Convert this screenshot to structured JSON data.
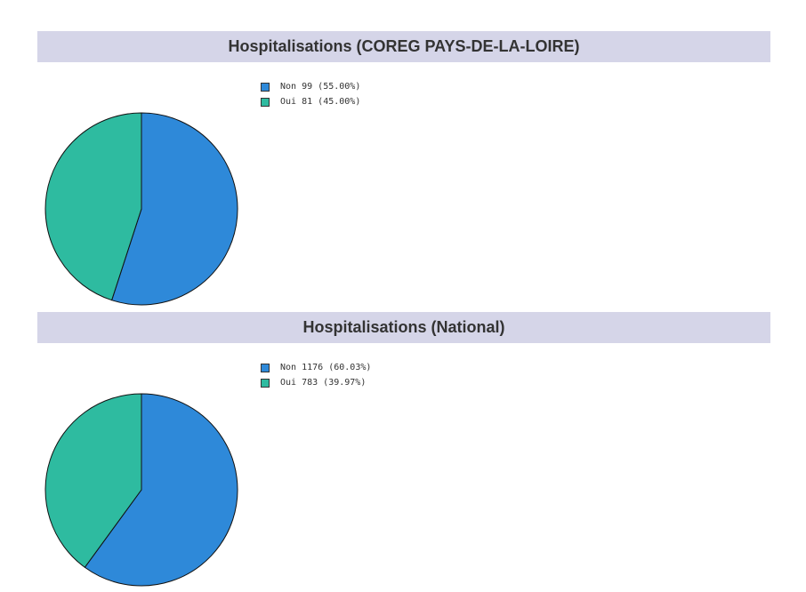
{
  "chart_data": [
    {
      "type": "pie",
      "title": "Hospitalisations (COREG PAYS-DE-LA-LOIRE)",
      "series": [
        {
          "name": "Non",
          "value": 99,
          "percent": "55.00%",
          "color": "#2e89d9"
        },
        {
          "name": "Oui",
          "value": 81,
          "percent": "45.00%",
          "color": "#2ebba0"
        }
      ],
      "legend_position": "right"
    },
    {
      "type": "pie",
      "title": "Hospitalisations (National)",
      "series": [
        {
          "name": "Non",
          "value": 1176,
          "percent": "60.03%",
          "color": "#2e89d9"
        },
        {
          "name": "Oui",
          "value": 783,
          "percent": "39.97%",
          "color": "#2ebba0"
        }
      ],
      "legend_position": "right"
    }
  ]
}
